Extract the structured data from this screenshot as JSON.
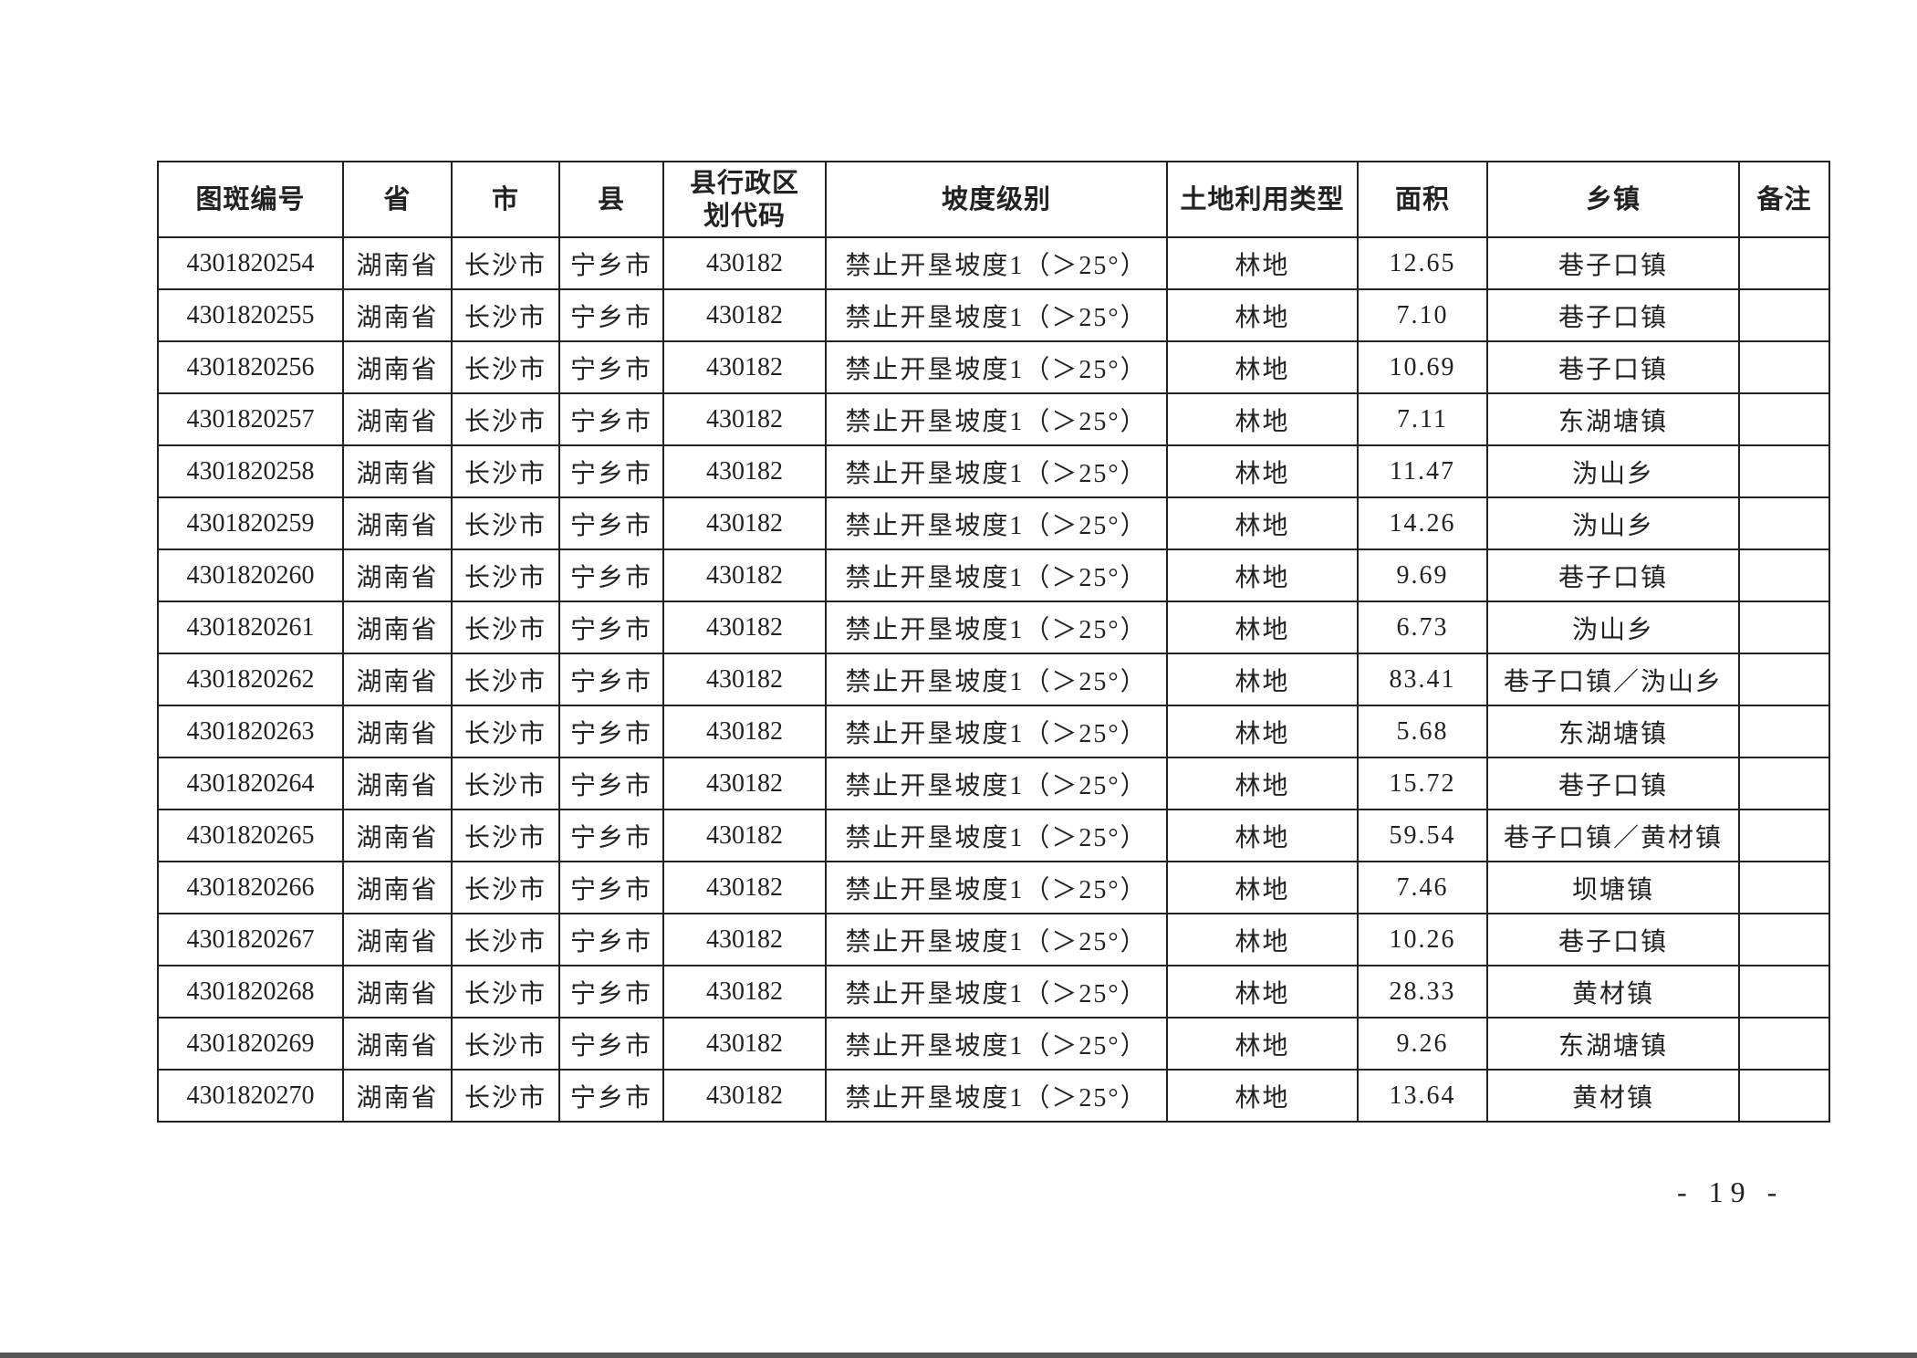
{
  "table": {
    "headers": [
      "图斑编号",
      "省",
      "市",
      "县",
      "县行政区划代码",
      "坡度级别",
      "土地利用类型",
      "面积",
      "乡镇",
      "备注"
    ],
    "rows": [
      [
        "4301820254",
        "湖南省",
        "长沙市",
        "宁乡市",
        "430182",
        "禁止开垦坡度1（＞25°）",
        "林地",
        "12.65",
        "巷子口镇",
        ""
      ],
      [
        "4301820255",
        "湖南省",
        "长沙市",
        "宁乡市",
        "430182",
        "禁止开垦坡度1（＞25°）",
        "林地",
        "7.10",
        "巷子口镇",
        ""
      ],
      [
        "4301820256",
        "湖南省",
        "长沙市",
        "宁乡市",
        "430182",
        "禁止开垦坡度1（＞25°）",
        "林地",
        "10.69",
        "巷子口镇",
        ""
      ],
      [
        "4301820257",
        "湖南省",
        "长沙市",
        "宁乡市",
        "430182",
        "禁止开垦坡度1（＞25°）",
        "林地",
        "7.11",
        "东湖塘镇",
        ""
      ],
      [
        "4301820258",
        "湖南省",
        "长沙市",
        "宁乡市",
        "430182",
        "禁止开垦坡度1（＞25°）",
        "林地",
        "11.47",
        "沩山乡",
        ""
      ],
      [
        "4301820259",
        "湖南省",
        "长沙市",
        "宁乡市",
        "430182",
        "禁止开垦坡度1（＞25°）",
        "林地",
        "14.26",
        "沩山乡",
        ""
      ],
      [
        "4301820260",
        "湖南省",
        "长沙市",
        "宁乡市",
        "430182",
        "禁止开垦坡度1（＞25°）",
        "林地",
        "9.69",
        "巷子口镇",
        ""
      ],
      [
        "4301820261",
        "湖南省",
        "长沙市",
        "宁乡市",
        "430182",
        "禁止开垦坡度1（＞25°）",
        "林地",
        "6.73",
        "沩山乡",
        ""
      ],
      [
        "4301820262",
        "湖南省",
        "长沙市",
        "宁乡市",
        "430182",
        "禁止开垦坡度1（＞25°）",
        "林地",
        "83.41",
        "巷子口镇／沩山乡",
        ""
      ],
      [
        "4301820263",
        "湖南省",
        "长沙市",
        "宁乡市",
        "430182",
        "禁止开垦坡度1（＞25°）",
        "林地",
        "5.68",
        "东湖塘镇",
        ""
      ],
      [
        "4301820264",
        "湖南省",
        "长沙市",
        "宁乡市",
        "430182",
        "禁止开垦坡度1（＞25°）",
        "林地",
        "15.72",
        "巷子口镇",
        ""
      ],
      [
        "4301820265",
        "湖南省",
        "长沙市",
        "宁乡市",
        "430182",
        "禁止开垦坡度1（＞25°）",
        "林地",
        "59.54",
        "巷子口镇／黄材镇",
        ""
      ],
      [
        "4301820266",
        "湖南省",
        "长沙市",
        "宁乡市",
        "430182",
        "禁止开垦坡度1（＞25°）",
        "林地",
        "7.46",
        "坝塘镇",
        ""
      ],
      [
        "4301820267",
        "湖南省",
        "长沙市",
        "宁乡市",
        "430182",
        "禁止开垦坡度1（＞25°）",
        "林地",
        "10.26",
        "巷子口镇",
        ""
      ],
      [
        "4301820268",
        "湖南省",
        "长沙市",
        "宁乡市",
        "430182",
        "禁止开垦坡度1（＞25°）",
        "林地",
        "28.33",
        "黄材镇",
        ""
      ],
      [
        "4301820269",
        "湖南省",
        "长沙市",
        "宁乡市",
        "430182",
        "禁止开垦坡度1（＞25°）",
        "林地",
        "9.26",
        "东湖塘镇",
        ""
      ],
      [
        "4301820270",
        "湖南省",
        "长沙市",
        "宁乡市",
        "430182",
        "禁止开垦坡度1（＞25°）",
        "林地",
        "13.64",
        "黄材镇",
        ""
      ]
    ]
  },
  "page_number": "- 19 -"
}
